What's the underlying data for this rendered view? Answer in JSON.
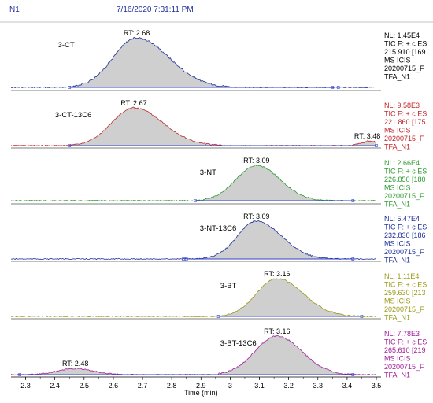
{
  "header": {
    "sample": "N1",
    "datetime": "7/16/2020 7:31:11 PM"
  },
  "chart_data": {
    "type": "area",
    "xlabel": "Time (min)",
    "xlim": [
      2.25,
      3.5
    ],
    "xticks": [
      "2.3",
      "2.4",
      "2.5",
      "2.6",
      "2.7",
      "2.8",
      "2.9",
      "3",
      "3.1",
      "3.2",
      "3.3",
      "3.4",
      "3.5"
    ],
    "xtick_values": [
      2.3,
      2.4,
      2.5,
      2.6,
      2.7,
      2.8,
      2.9,
      3.0,
      3.1,
      3.2,
      3.3,
      3.4,
      3.5
    ],
    "traces": [
      {
        "compound": "3-CT",
        "rt_label": "RT: 2.68",
        "color": "#1f2f9a",
        "info_color": "#000000",
        "info": [
          "NL: 1.45E4",
          "TIC F: + c ES",
          "215.910 [169",
          "MS ICIS",
          "20200715_F",
          "TFA_N1"
        ],
        "peaks": [
          {
            "start": 2.43,
            "end": 3.0,
            "apex": 2.68,
            "height": 1.0,
            "width_l": 0.08,
            "width_r": 0.11
          }
        ],
        "baseline": [
          2.45,
          3.35
        ],
        "bump_at": 3.37
      },
      {
        "compound": "3-CT-13C6",
        "rt_label": "RT: 2.67",
        "rt2_label": "RT: 3.48",
        "color": "#c0282d",
        "info_color": "#c0282d",
        "info": [
          "NL: 9.58E3",
          "TIC F: + c ES",
          "221.860 [175",
          "MS ICIS",
          "20200715_F",
          "TFA_N1"
        ],
        "peaks": [
          {
            "start": 2.45,
            "end": 2.98,
            "apex": 2.67,
            "height": 1.0,
            "width_l": 0.075,
            "width_r": 0.1
          },
          {
            "start": 3.4,
            "end": 3.5,
            "apex": 3.48,
            "height": 0.12,
            "width_l": 0.03,
            "width_r": 0.03
          }
        ],
        "baseline": [
          2.45,
          3.5
        ]
      },
      {
        "compound": "3-NT",
        "rt_label": "RT: 3.09",
        "color": "#2e9a2e",
        "info_color": "#2e9a2e",
        "info": [
          "NL: 2.66E4",
          "TIC F: + c ES",
          "226.850 [180",
          "MS ICIS",
          "20200715_F",
          "TFA_N1"
        ],
        "peaks": [
          {
            "start": 2.88,
            "end": 3.4,
            "apex": 3.09,
            "height": 1.0,
            "width_l": 0.07,
            "width_r": 0.08
          }
        ],
        "baseline": [
          2.88,
          3.42
        ]
      },
      {
        "compound": "3-NT-13C6",
        "rt_label": "RT: 3.09",
        "color": "#1f2f9a",
        "info_color": "#1f2f9a",
        "info": [
          "NL: 5.47E4",
          "TIC F: + c ES",
          "232.830 [186",
          "MS ICIS",
          "20200715_F",
          "TFA_N1"
        ],
        "peaks": [
          {
            "start": 2.88,
            "end": 3.4,
            "apex": 3.09,
            "height": 1.0,
            "width_l": 0.065,
            "width_r": 0.085
          }
        ],
        "baseline": [
          2.85,
          3.42
        ],
        "bump_at": 2.84
      },
      {
        "compound": "3-BT",
        "rt_label": "RT: 3.16",
        "color": "#9a9a1a",
        "info_color": "#9a9a1a",
        "info": [
          "NL: 1.11E4",
          "TIC F: + c ES",
          "259.630 [213",
          "MS ICIS",
          "20200715_F",
          "TFA_N1"
        ],
        "peaks": [
          {
            "start": 2.95,
            "end": 3.45,
            "apex": 3.16,
            "height": 1.0,
            "width_l": 0.07,
            "width_r": 0.09
          }
        ],
        "baseline": [
          2.96,
          3.45
        ]
      },
      {
        "compound": "3-BT-13C6",
        "rt_label": "RT: 3.16",
        "rt2_label": "RT: 2.48",
        "color": "#a0209a",
        "info_color": "#a0209a",
        "info": [
          "NL: 7.78E3",
          "TIC F: + c ES",
          "265.610 [219",
          "MS ICIS",
          "20200715_F",
          "TFA_N1"
        ],
        "peaks": [
          {
            "start": 2.96,
            "end": 3.42,
            "apex": 3.16,
            "height": 1.0,
            "width_l": 0.075,
            "width_r": 0.085
          },
          {
            "start": 2.3,
            "end": 2.62,
            "apex": 2.47,
            "height": 0.16,
            "width_l": 0.06,
            "width_r": 0.06
          }
        ],
        "baseline": [
          2.28,
          3.42
        ]
      }
    ]
  }
}
